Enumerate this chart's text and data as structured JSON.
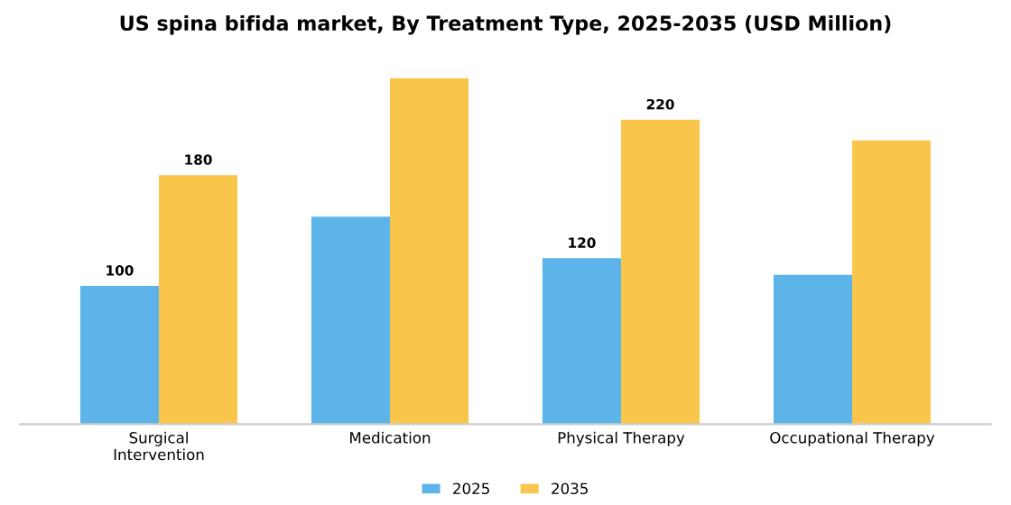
{
  "chart_data": {
    "type": "bar",
    "title": "US spina bifida market, By Treatment Type, 2025-2035 (USD Million)",
    "categories": [
      "Surgical\nIntervention",
      "Medication",
      "Physical Therapy",
      "Occupational Therapy"
    ],
    "series": [
      {
        "name": "2025",
        "color": "#5db4e8",
        "values": [
          100,
          150,
          120,
          108
        ],
        "value_labels": [
          "100",
          null,
          "120",
          null
        ]
      },
      {
        "name": "2035",
        "color": "#f9c54b",
        "values": [
          180,
          250,
          220,
          205
        ],
        "value_labels": [
          "180",
          null,
          "220",
          null
        ]
      }
    ],
    "legend": "bottom",
    "grid": false
  }
}
